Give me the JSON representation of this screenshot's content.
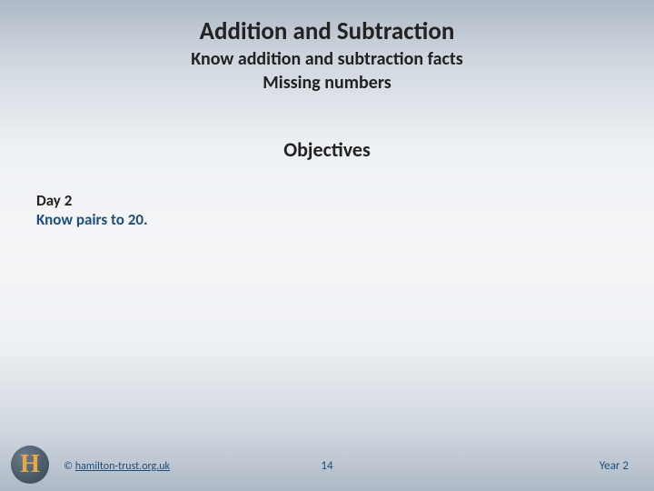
{
  "header": {
    "title": "Addition and Subtraction",
    "subtitle1": "Know addition and subtraction facts",
    "subtitle2": "Missing numbers"
  },
  "objectives": {
    "heading": "Objectives",
    "day_label": "Day 2",
    "objective_text": "Know pairs to 20."
  },
  "footer": {
    "logo_letter": "H",
    "copyright_symbol": "©",
    "copyright_link": "hamilton-trust.org.uk",
    "page_number": "14",
    "year": "Year 2"
  },
  "style": {
    "background_gradient_stops": [
      "#aeb9c6",
      "#cfd6de",
      "#eef1f4",
      "#f4f5f7",
      "#eef1f4",
      "#cfd6de",
      "#aeb9c6"
    ],
    "title_color": "#222222",
    "accent_color": "#1f4e79",
    "logo_fill": "#4a5a69",
    "logo_text_color": "#e6a94a",
    "title_fontsize_pt": 20,
    "subtitle_fontsize_pt": 15,
    "objectives_heading_fontsize_pt": 17,
    "body_fontsize_pt": 13,
    "footer_fontsize_pt": 10
  }
}
